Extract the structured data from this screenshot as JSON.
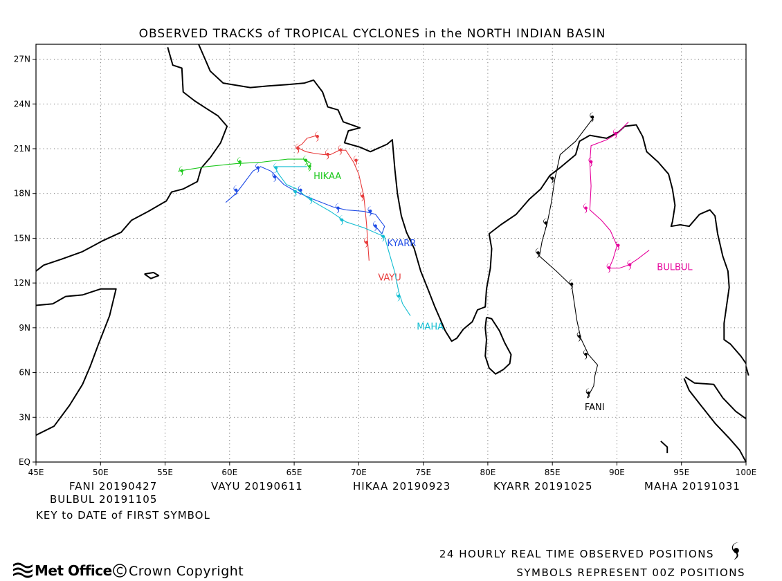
{
  "title": "OBSERVED TRACKS of TROPICAL CYCLONES in the NORTH INDIAN BASIN",
  "colors": {
    "FANI": "#000000",
    "VAYU": "#e83c3c",
    "HIKAA": "#1ec81e",
    "KYARR": "#1e4be6",
    "MAHA": "#14bed2",
    "BULBUL": "#e6009b"
  },
  "map": {
    "lon_range": [
      45,
      100
    ],
    "lat_range": [
      0,
      28
    ],
    "lon_ticks": [
      "45E",
      "50E",
      "55E",
      "60E",
      "65E",
      "70E",
      "75E",
      "80E",
      "85E",
      "90E",
      "95E",
      "100E"
    ],
    "lat_ticks": [
      "EQ",
      "3N",
      "6N",
      "9N",
      "12N",
      "15N",
      "18N",
      "21N",
      "24N",
      "27N"
    ],
    "grid": "dotted"
  },
  "storms": [
    {
      "name": "FANI",
      "label": "FANI",
      "label_at": [
        87.5,
        3.7
      ],
      "color": "#000000",
      "track": [
        [
          87.7,
          4.3
        ],
        [
          88.2,
          5.1
        ],
        [
          88.3,
          5.8
        ],
        [
          88.5,
          6.5
        ],
        [
          87.8,
          7.2
        ],
        [
          87.2,
          8.3
        ],
        [
          86.9,
          9.5
        ],
        [
          86.5,
          11.8
        ],
        [
          85.3,
          12.8
        ],
        [
          84.0,
          13.8
        ],
        [
          84.2,
          14.8
        ],
        [
          84.6,
          16.0
        ],
        [
          84.9,
          17.3
        ],
        [
          85.2,
          19.0
        ],
        [
          85.6,
          20.6
        ],
        [
          86.8,
          21.5
        ],
        [
          88.2,
          23.1
        ]
      ],
      "symbols": [
        [
          87.8,
          4.6
        ],
        [
          87.6,
          7.2
        ],
        [
          87.1,
          8.4
        ],
        [
          86.5,
          11.9
        ],
        [
          83.9,
          14.0
        ],
        [
          84.5,
          16.0
        ],
        [
          85.0,
          19.0
        ],
        [
          88.1,
          23.1
        ]
      ]
    },
    {
      "name": "VAYU",
      "label": "VAYU",
      "label_at": [
        71.5,
        12.4
      ],
      "color": "#e83c3c",
      "track": [
        [
          70.8,
          13.5
        ],
        [
          70.7,
          14.7
        ],
        [
          70.6,
          16.0
        ],
        [
          70.4,
          17.8
        ],
        [
          70.0,
          19.3
        ],
        [
          69.6,
          20.1
        ],
        [
          69.0,
          20.9
        ],
        [
          68.5,
          20.9
        ],
        [
          67.8,
          20.6
        ],
        [
          67.3,
          20.6
        ],
        [
          66.5,
          20.7
        ],
        [
          65.9,
          20.8
        ],
        [
          65.2,
          21.1
        ],
        [
          65.6,
          21.3
        ],
        [
          66.0,
          21.7
        ],
        [
          66.8,
          21.9
        ]
      ],
      "symbols": [
        [
          70.6,
          14.7
        ],
        [
          70.3,
          17.8
        ],
        [
          69.8,
          20.2
        ],
        [
          68.6,
          20.9
        ],
        [
          67.6,
          20.6
        ],
        [
          65.3,
          21.0
        ],
        [
          66.8,
          21.8
        ]
      ]
    },
    {
      "name": "HIKAA",
      "label": "HIKAA",
      "label_at": [
        66.5,
        19.2
      ],
      "color": "#1ec81e",
      "track": [
        [
          56.0,
          19.5
        ],
        [
          58.2,
          19.8
        ],
        [
          60.5,
          20.0
        ],
        [
          62.5,
          20.1
        ],
        [
          64.5,
          20.3
        ],
        [
          65.8,
          20.3
        ],
        [
          66.3,
          20.0
        ],
        [
          66.1,
          19.6
        ]
      ],
      "symbols": [
        [
          56.3,
          19.5
        ],
        [
          60.8,
          20.1
        ],
        [
          65.9,
          20.2
        ],
        [
          66.2,
          19.8
        ]
      ]
    },
    {
      "name": "KYARR",
      "label": "KYARR",
      "label_at": [
        72.2,
        14.7
      ],
      "color": "#1e4be6",
      "track": [
        [
          59.7,
          17.4
        ],
        [
          60.5,
          18.0
        ],
        [
          61.2,
          18.8
        ],
        [
          61.8,
          19.5
        ],
        [
          62.4,
          19.8
        ],
        [
          63.2,
          19.5
        ],
        [
          64.2,
          18.6
        ],
        [
          65.2,
          18.1
        ],
        [
          66.5,
          17.6
        ],
        [
          68.0,
          17.1
        ],
        [
          69.0,
          16.9
        ],
        [
          70.4,
          16.8
        ],
        [
          71.3,
          16.6
        ],
        [
          72.0,
          15.8
        ],
        [
          71.8,
          15.3
        ],
        [
          71.2,
          15.9
        ]
      ],
      "symbols": [
        [
          60.5,
          18.2
        ],
        [
          62.2,
          19.7
        ],
        [
          63.5,
          19.1
        ],
        [
          65.5,
          18.2
        ],
        [
          68.4,
          17.0
        ],
        [
          70.9,
          16.8
        ],
        [
          71.3,
          15.8
        ]
      ]
    },
    {
      "name": "MAHA",
      "label": "MAHA",
      "label_at": [
        74.5,
        9.1
      ],
      "color": "#14bed2",
      "track": [
        [
          74.0,
          9.8
        ],
        [
          73.4,
          10.6
        ],
        [
          73.1,
          11.4
        ],
        [
          72.8,
          12.7
        ],
        [
          72.4,
          13.9
        ],
        [
          72.0,
          15.1
        ],
        [
          70.4,
          15.7
        ],
        [
          69.0,
          16.1
        ],
        [
          67.8,
          16.8
        ],
        [
          66.6,
          17.4
        ],
        [
          65.9,
          17.8
        ],
        [
          65.2,
          18.3
        ],
        [
          64.4,
          18.6
        ],
        [
          63.8,
          19.3
        ],
        [
          63.5,
          19.8
        ],
        [
          64.8,
          19.8
        ],
        [
          66.0,
          19.8
        ]
      ],
      "symbols": [
        [
          73.1,
          11.1
        ],
        [
          71.9,
          15.1
        ],
        [
          68.7,
          16.2
        ],
        [
          66.3,
          17.6
        ],
        [
          65.1,
          18.1
        ],
        [
          63.6,
          19.7
        ]
      ]
    },
    {
      "name": "BULBUL",
      "label": "BULBUL",
      "label_at": [
        93.1,
        13.1
      ],
      "color": "#e6009b",
      "track": [
        [
          92.5,
          14.2
        ],
        [
          91.6,
          13.6
        ],
        [
          90.9,
          13.2
        ],
        [
          90.2,
          13.0
        ],
        [
          89.4,
          13.0
        ],
        [
          89.7,
          13.6
        ],
        [
          90.0,
          14.5
        ],
        [
          89.5,
          15.5
        ],
        [
          88.8,
          16.2
        ],
        [
          87.9,
          16.9
        ],
        [
          88.0,
          18.5
        ],
        [
          87.9,
          20.1
        ],
        [
          88.0,
          21.2
        ],
        [
          89.2,
          21.6
        ],
        [
          90.0,
          22.0
        ],
        [
          90.9,
          22.8
        ]
      ],
      "symbols": [
        [
          91.0,
          13.2
        ],
        [
          89.4,
          13.0
        ],
        [
          90.1,
          14.5
        ],
        [
          87.6,
          17.0
        ],
        [
          88.0,
          20.1
        ],
        [
          89.9,
          22.0
        ]
      ]
    }
  ],
  "key": {
    "first_dates": [
      {
        "name": "FANI",
        "date": "20190427"
      },
      {
        "name": "VAYU",
        "date": "20190611"
      },
      {
        "name": "HIKAA",
        "date": "20190923"
      },
      {
        "name": "KYARR",
        "date": "20191025"
      },
      {
        "name": "MAHA",
        "date": "20191031"
      },
      {
        "name": "BULBUL",
        "date": "20191105"
      }
    ],
    "caption": "KEY to DATE of FIRST SYMBOL"
  },
  "legend": {
    "line1": "24 HOURLY REAL TIME OBSERVED POSITIONS",
    "line2": "SYMBOLS REPRESENT 00Z POSITIONS",
    "symbol_icon": "cyclone-symbol-icon"
  },
  "logo": "Met Office",
  "copyright": "Crown Copyright",
  "coastlines": {
    "africa_arabia": [
      [
        45,
        1.8
      ],
      [
        46.4,
        2.4
      ],
      [
        47.6,
        3.8
      ],
      [
        48.6,
        5.2
      ],
      [
        49.2,
        6.4
      ],
      [
        49.8,
        7.8
      ],
      [
        50.7,
        9.8
      ],
      [
        51.2,
        11.6
      ],
      [
        50,
        11.6
      ],
      [
        48.6,
        11.2
      ],
      [
        47.3,
        11.1
      ],
      [
        46.3,
        10.6
      ],
      [
        45,
        10.5
      ]
    ],
    "arabia": [
      [
        45,
        12.8
      ],
      [
        45.6,
        13.2
      ],
      [
        47,
        13.6
      ],
      [
        48.6,
        14.1
      ],
      [
        50.1,
        14.8
      ],
      [
        51.6,
        15.4
      ],
      [
        52.4,
        16.2
      ],
      [
        53.7,
        16.8
      ],
      [
        55.1,
        17.5
      ],
      [
        55.5,
        18.1
      ],
      [
        56.4,
        18.3
      ],
      [
        57.5,
        18.8
      ],
      [
        57.8,
        19.7
      ],
      [
        58.5,
        20.4
      ],
      [
        59.3,
        21.4
      ],
      [
        59.8,
        22.5
      ],
      [
        59.1,
        23.2
      ],
      [
        58.2,
        23.7
      ],
      [
        57.3,
        24.2
      ],
      [
        56.4,
        24.8
      ],
      [
        56.3,
        26.4
      ],
      [
        55.6,
        26.6
      ],
      [
        55.2,
        27.8
      ]
    ],
    "iran_pakistan_india": [
      [
        57.6,
        28
      ],
      [
        57.9,
        27.4
      ],
      [
        58.5,
        26.2
      ],
      [
        59.5,
        25.4
      ],
      [
        61.6,
        25.1
      ],
      [
        62.9,
        25.2
      ],
      [
        64.5,
        25.3
      ],
      [
        65.8,
        25.4
      ],
      [
        66.5,
        25.6
      ],
      [
        67.2,
        24.8
      ],
      [
        67.6,
        23.8
      ],
      [
        68.4,
        23.6
      ],
      [
        68.8,
        22.8
      ],
      [
        70.1,
        22.4
      ],
      [
        69.2,
        22.2
      ],
      [
        68.9,
        21.4
      ],
      [
        70.1,
        21.1
      ],
      [
        70.9,
        20.8
      ],
      [
        72.2,
        21.3
      ],
      [
        72.6,
        21.6
      ],
      [
        72.8,
        19.6
      ],
      [
        73.0,
        18.0
      ],
      [
        73.3,
        16.5
      ],
      [
        73.7,
        15.4
      ],
      [
        74.3,
        14.3
      ],
      [
        74.8,
        12.8
      ],
      [
        75.4,
        11.5
      ],
      [
        75.9,
        10.4
      ],
      [
        76.3,
        9.6
      ],
      [
        76.7,
        8.8
      ],
      [
        77.2,
        8.1
      ],
      [
        77.6,
        8.3
      ],
      [
        78.1,
        8.9
      ],
      [
        78.8,
        9.4
      ],
      [
        79.2,
        10.2
      ],
      [
        79.8,
        10.4
      ],
      [
        79.9,
        11.6
      ],
      [
        80.2,
        13.0
      ],
      [
        80.3,
        14.3
      ],
      [
        80.1,
        15.3
      ],
      [
        81.0,
        15.9
      ],
      [
        82.2,
        16.6
      ],
      [
        83.2,
        17.6
      ],
      [
        84.1,
        18.3
      ],
      [
        84.8,
        19.2
      ],
      [
        85.7,
        19.8
      ],
      [
        86.8,
        20.6
      ],
      [
        87.1,
        21.5
      ],
      [
        87.9,
        21.9
      ],
      [
        88.5,
        21.8
      ],
      [
        89.2,
        21.7
      ],
      [
        90.1,
        22.1
      ],
      [
        90.6,
        22.5
      ],
      [
        91.5,
        22.6
      ],
      [
        92.0,
        21.8
      ],
      [
        92.3,
        20.8
      ],
      [
        93.2,
        20.1
      ],
      [
        94.0,
        19.3
      ],
      [
        94.3,
        18.3
      ],
      [
        94.5,
        17.2
      ],
      [
        94.3,
        16.1
      ],
      [
        94.2,
        15.8
      ],
      [
        94.9,
        15.9
      ],
      [
        95.6,
        15.8
      ],
      [
        96.4,
        16.6
      ],
      [
        97.2,
        16.9
      ],
      [
        97.6,
        16.5
      ],
      [
        97.8,
        15.3
      ],
      [
        98.2,
        13.8
      ],
      [
        98.6,
        12.8
      ],
      [
        98.7,
        11.7
      ],
      [
        98.5,
        10.5
      ],
      [
        98.3,
        9.3
      ],
      [
        98.3,
        8.2
      ],
      [
        98.8,
        7.9
      ],
      [
        99.6,
        7.1
      ],
      [
        100,
        6.6
      ]
    ],
    "sri_lanka": [
      [
        79.9,
        9.7
      ],
      [
        80.3,
        9.6
      ],
      [
        80.9,
        8.8
      ],
      [
        81.3,
        8.0
      ],
      [
        81.8,
        7.2
      ],
      [
        81.7,
        6.6
      ],
      [
        81.2,
        6.2
      ],
      [
        80.6,
        5.9
      ],
      [
        80.1,
        6.3
      ],
      [
        79.8,
        7.1
      ],
      [
        79.9,
        8.2
      ],
      [
        79.8,
        9.0
      ],
      [
        79.9,
        9.7
      ]
    ],
    "socotra": [
      [
        53.4,
        12.6
      ],
      [
        54.1,
        12.7
      ],
      [
        54.5,
        12.5
      ],
      [
        53.9,
        12.3
      ],
      [
        53.4,
        12.6
      ]
    ],
    "sumatra_malaya": [
      [
        95.3,
        5.7
      ],
      [
        96.0,
        5.3
      ],
      [
        97.5,
        5.2
      ],
      [
        98.2,
        4.3
      ],
      [
        99.2,
        3.4
      ],
      [
        100,
        2.9
      ]
    ],
    "sumatra_west": [
      [
        95.2,
        5.6
      ],
      [
        95.6,
        4.8
      ],
      [
        96.5,
        3.8
      ],
      [
        97.6,
        2.6
      ],
      [
        98.7,
        1.6
      ],
      [
        99.5,
        0.8
      ],
      [
        100,
        0.0
      ]
    ],
    "malaya": [
      [
        100,
        6.4
      ],
      [
        100.2,
        5.8
      ]
    ],
    "nicobar": [
      [
        93.4,
        1.4
      ],
      [
        93.9,
        1.0
      ],
      [
        93.9,
        0.6
      ]
    ]
  }
}
